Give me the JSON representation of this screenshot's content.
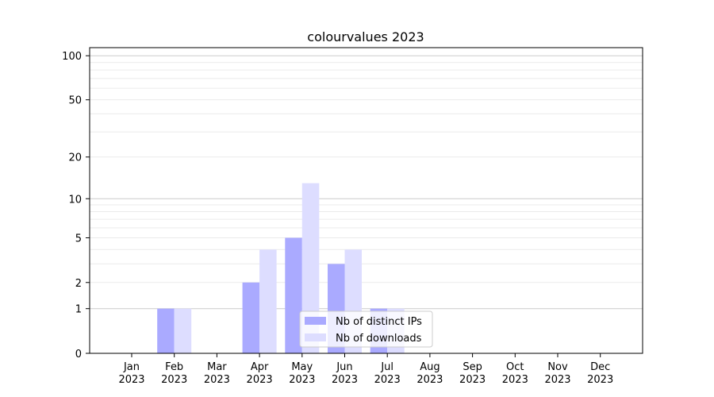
{
  "chart_data": {
    "type": "bar",
    "title": "colourvalues 2023",
    "xlabel": "",
    "ylabel": "",
    "yscale": "symlog",
    "ylim": [
      0,
      113
    ],
    "yticks": [
      0,
      1,
      2,
      5,
      10,
      20,
      50,
      100
    ],
    "grid": true,
    "legend_position": "lower-center",
    "categories": [
      "Jan\n2023",
      "Feb\n2023",
      "Mar\n2023",
      "Apr\n2023",
      "May\n2023",
      "Jun\n2023",
      "Jul\n2023",
      "Aug\n2023",
      "Sep\n2023",
      "Oct\n2023",
      "Nov\n2023",
      "Dec\n2023"
    ],
    "series": [
      {
        "name": "Nb of distinct IPs",
        "color": "#aaaaff",
        "values": [
          0,
          1,
          0,
          2,
          5,
          3,
          1,
          0,
          0,
          0,
          0,
          0
        ]
      },
      {
        "name": "Nb of downloads",
        "color": "#ddddff",
        "values": [
          0,
          1,
          0,
          4,
          13,
          4,
          1,
          0,
          0,
          0,
          0,
          0
        ]
      }
    ]
  }
}
